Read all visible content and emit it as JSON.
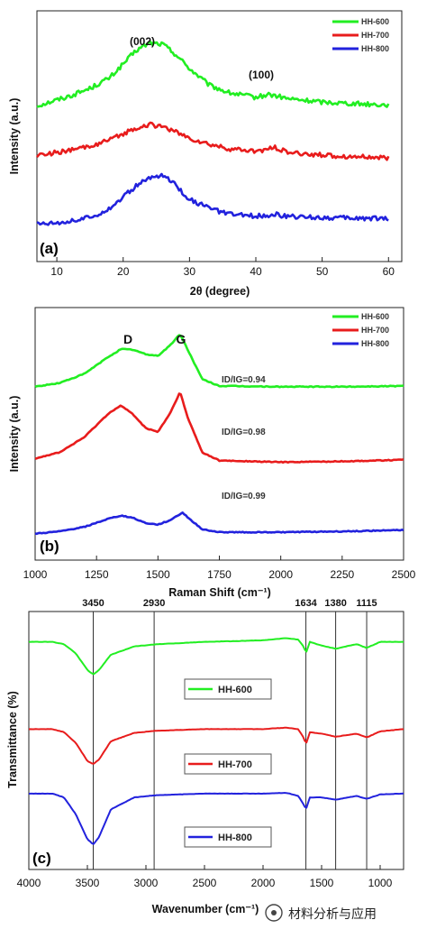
{
  "chart_data": [
    {
      "type": "line",
      "panel_label": "(a)",
      "xlabel": "2θ (degree)",
      "ylabel": "Intensity (a.u.)",
      "xlim": [
        7,
        62
      ],
      "xticks": [
        10,
        20,
        30,
        40,
        50,
        60
      ],
      "annotations": [
        "(002)",
        "(100)"
      ],
      "legend": [
        "HH-600",
        "HH-700",
        "HH-800"
      ],
      "legend_position": "top-right",
      "colors": {
        "HH-600": "#22ee22",
        "HH-700": "#e81c1c",
        "HH-800": "#2222dd"
      },
      "series": [
        {
          "name": "HH-600",
          "x": [
            7,
            12,
            15,
            18,
            20,
            22,
            24,
            26,
            28,
            30,
            33,
            36,
            40,
            42,
            45,
            50,
            55,
            60
          ],
          "y": [
            1.75,
            1.88,
            1.98,
            2.12,
            2.3,
            2.48,
            2.58,
            2.56,
            2.42,
            2.24,
            2.02,
            1.92,
            1.86,
            1.9,
            1.84,
            1.8,
            1.78,
            1.76
          ]
        },
        {
          "name": "HH-700",
          "x": [
            7,
            12,
            15,
            18,
            20,
            22,
            24,
            26,
            28,
            30,
            33,
            36,
            40,
            43,
            45,
            50,
            55,
            60
          ],
          "y": [
            1.1,
            1.16,
            1.22,
            1.3,
            1.38,
            1.46,
            1.5,
            1.48,
            1.4,
            1.32,
            1.24,
            1.18,
            1.15,
            1.2,
            1.13,
            1.1,
            1.08,
            1.06
          ]
        },
        {
          "name": "HH-800",
          "x": [
            7,
            12,
            15,
            18,
            20,
            22,
            24,
            26,
            28,
            30,
            33,
            36,
            40,
            43,
            45,
            50,
            55,
            60
          ],
          "y": [
            0.2,
            0.23,
            0.28,
            0.4,
            0.55,
            0.7,
            0.8,
            0.84,
            0.7,
            0.52,
            0.4,
            0.32,
            0.3,
            0.32,
            0.29,
            0.28,
            0.27,
            0.27
          ]
        }
      ]
    },
    {
      "type": "line",
      "panel_label": "(b)",
      "xlabel": "Raman Shift (cm⁻¹)",
      "ylabel": "Intensity (a.u.)",
      "xlim": [
        1000,
        2500
      ],
      "xticks": [
        1000,
        1250,
        1500,
        1750,
        2000,
        2250,
        2500
      ],
      "annotations": [
        "D",
        "G"
      ],
      "ratio_labels": [
        "ID/IG=0.94",
        "ID/IG=0.98",
        "ID/IG=0.99"
      ],
      "legend": [
        "HH-600",
        "HH-700",
        "HH-800"
      ],
      "legend_position": "top-right",
      "colors": {
        "HH-600": "#22ee22",
        "HH-700": "#e81c1c",
        "HH-800": "#2222dd"
      },
      "series": [
        {
          "name": "HH-600",
          "x": [
            1000,
            1100,
            1200,
            1300,
            1350,
            1400,
            1450,
            1500,
            1550,
            1590,
            1620,
            1680,
            1750,
            2000,
            2250,
            2500
          ],
          "y": [
            1.95,
            2.0,
            2.12,
            2.35,
            2.45,
            2.44,
            2.38,
            2.36,
            2.5,
            2.65,
            2.45,
            2.05,
            1.96,
            1.95,
            1.95,
            1.96
          ]
        },
        {
          "name": "HH-700",
          "x": [
            1000,
            1100,
            1200,
            1300,
            1350,
            1400,
            1450,
            1500,
            1550,
            1590,
            1620,
            1680,
            1750,
            2000,
            2250,
            2500
          ],
          "y": [
            1.0,
            1.08,
            1.28,
            1.6,
            1.7,
            1.58,
            1.4,
            1.35,
            1.6,
            1.88,
            1.55,
            1.08,
            0.97,
            0.95,
            0.96,
            0.98
          ]
        },
        {
          "name": "HH-800",
          "x": [
            1000,
            1100,
            1200,
            1300,
            1350,
            1400,
            1450,
            1500,
            1550,
            1600,
            1620,
            1680,
            1750,
            2000,
            2250,
            2500
          ],
          "y": [
            0.0,
            0.03,
            0.09,
            0.2,
            0.24,
            0.21,
            0.14,
            0.12,
            0.18,
            0.28,
            0.22,
            0.06,
            0.02,
            0.02,
            0.03,
            0.05
          ]
        }
      ]
    },
    {
      "type": "line",
      "panel_label": "(c)",
      "xlabel": "Wavenumber (cm⁻¹)",
      "ylabel": "Transmittance (%)",
      "xlim": [
        4000,
        800
      ],
      "xticks": [
        4000,
        3500,
        3000,
        2500,
        2000,
        1500,
        1000
      ],
      "reference_lines": [
        3450,
        2930,
        1634,
        1380,
        1115
      ],
      "legend": [
        "HH-600",
        "HH-700",
        "HH-800"
      ],
      "colors": {
        "HH-600": "#22ee22",
        "HH-700": "#e81c1c",
        "HH-800": "#2222dd"
      },
      "series": [
        {
          "name": "HH-600",
          "x": [
            4000,
            3800,
            3700,
            3600,
            3500,
            3450,
            3400,
            3300,
            3100,
            2900,
            2500,
            2000,
            1800,
            1700,
            1650,
            1634,
            1600,
            1500,
            1380,
            1200,
            1115,
            1000,
            800
          ],
          "y": [
            2.55,
            2.55,
            2.52,
            2.4,
            2.18,
            2.12,
            2.18,
            2.38,
            2.49,
            2.52,
            2.55,
            2.57,
            2.6,
            2.58,
            2.48,
            2.4,
            2.55,
            2.5,
            2.46,
            2.52,
            2.47,
            2.55,
            2.55
          ]
        },
        {
          "name": "HH-700",
          "x": [
            4000,
            3800,
            3700,
            3600,
            3500,
            3450,
            3400,
            3300,
            3100,
            2900,
            2500,
            2000,
            1800,
            1700,
            1650,
            1634,
            1600,
            1500,
            1380,
            1200,
            1115,
            1000,
            800
          ],
          "y": [
            1.4,
            1.4,
            1.36,
            1.22,
            0.98,
            0.94,
            1.0,
            1.24,
            1.35,
            1.38,
            1.4,
            1.4,
            1.42,
            1.4,
            1.28,
            1.2,
            1.36,
            1.34,
            1.3,
            1.34,
            1.29,
            1.37,
            1.4
          ]
        },
        {
          "name": "HH-800",
          "x": [
            4000,
            3800,
            3700,
            3600,
            3500,
            3450,
            3400,
            3300,
            3100,
            2900,
            2500,
            2000,
            1800,
            1700,
            1650,
            1634,
            1600,
            1500,
            1380,
            1200,
            1115,
            1000,
            800
          ],
          "y": [
            0.55,
            0.55,
            0.5,
            0.28,
            -0.05,
            -0.12,
            -0.02,
            0.34,
            0.5,
            0.53,
            0.55,
            0.55,
            0.56,
            0.52,
            0.4,
            0.34,
            0.5,
            0.5,
            0.47,
            0.52,
            0.48,
            0.54,
            0.55
          ]
        }
      ]
    }
  ],
  "watermark": "材料分析与应用"
}
